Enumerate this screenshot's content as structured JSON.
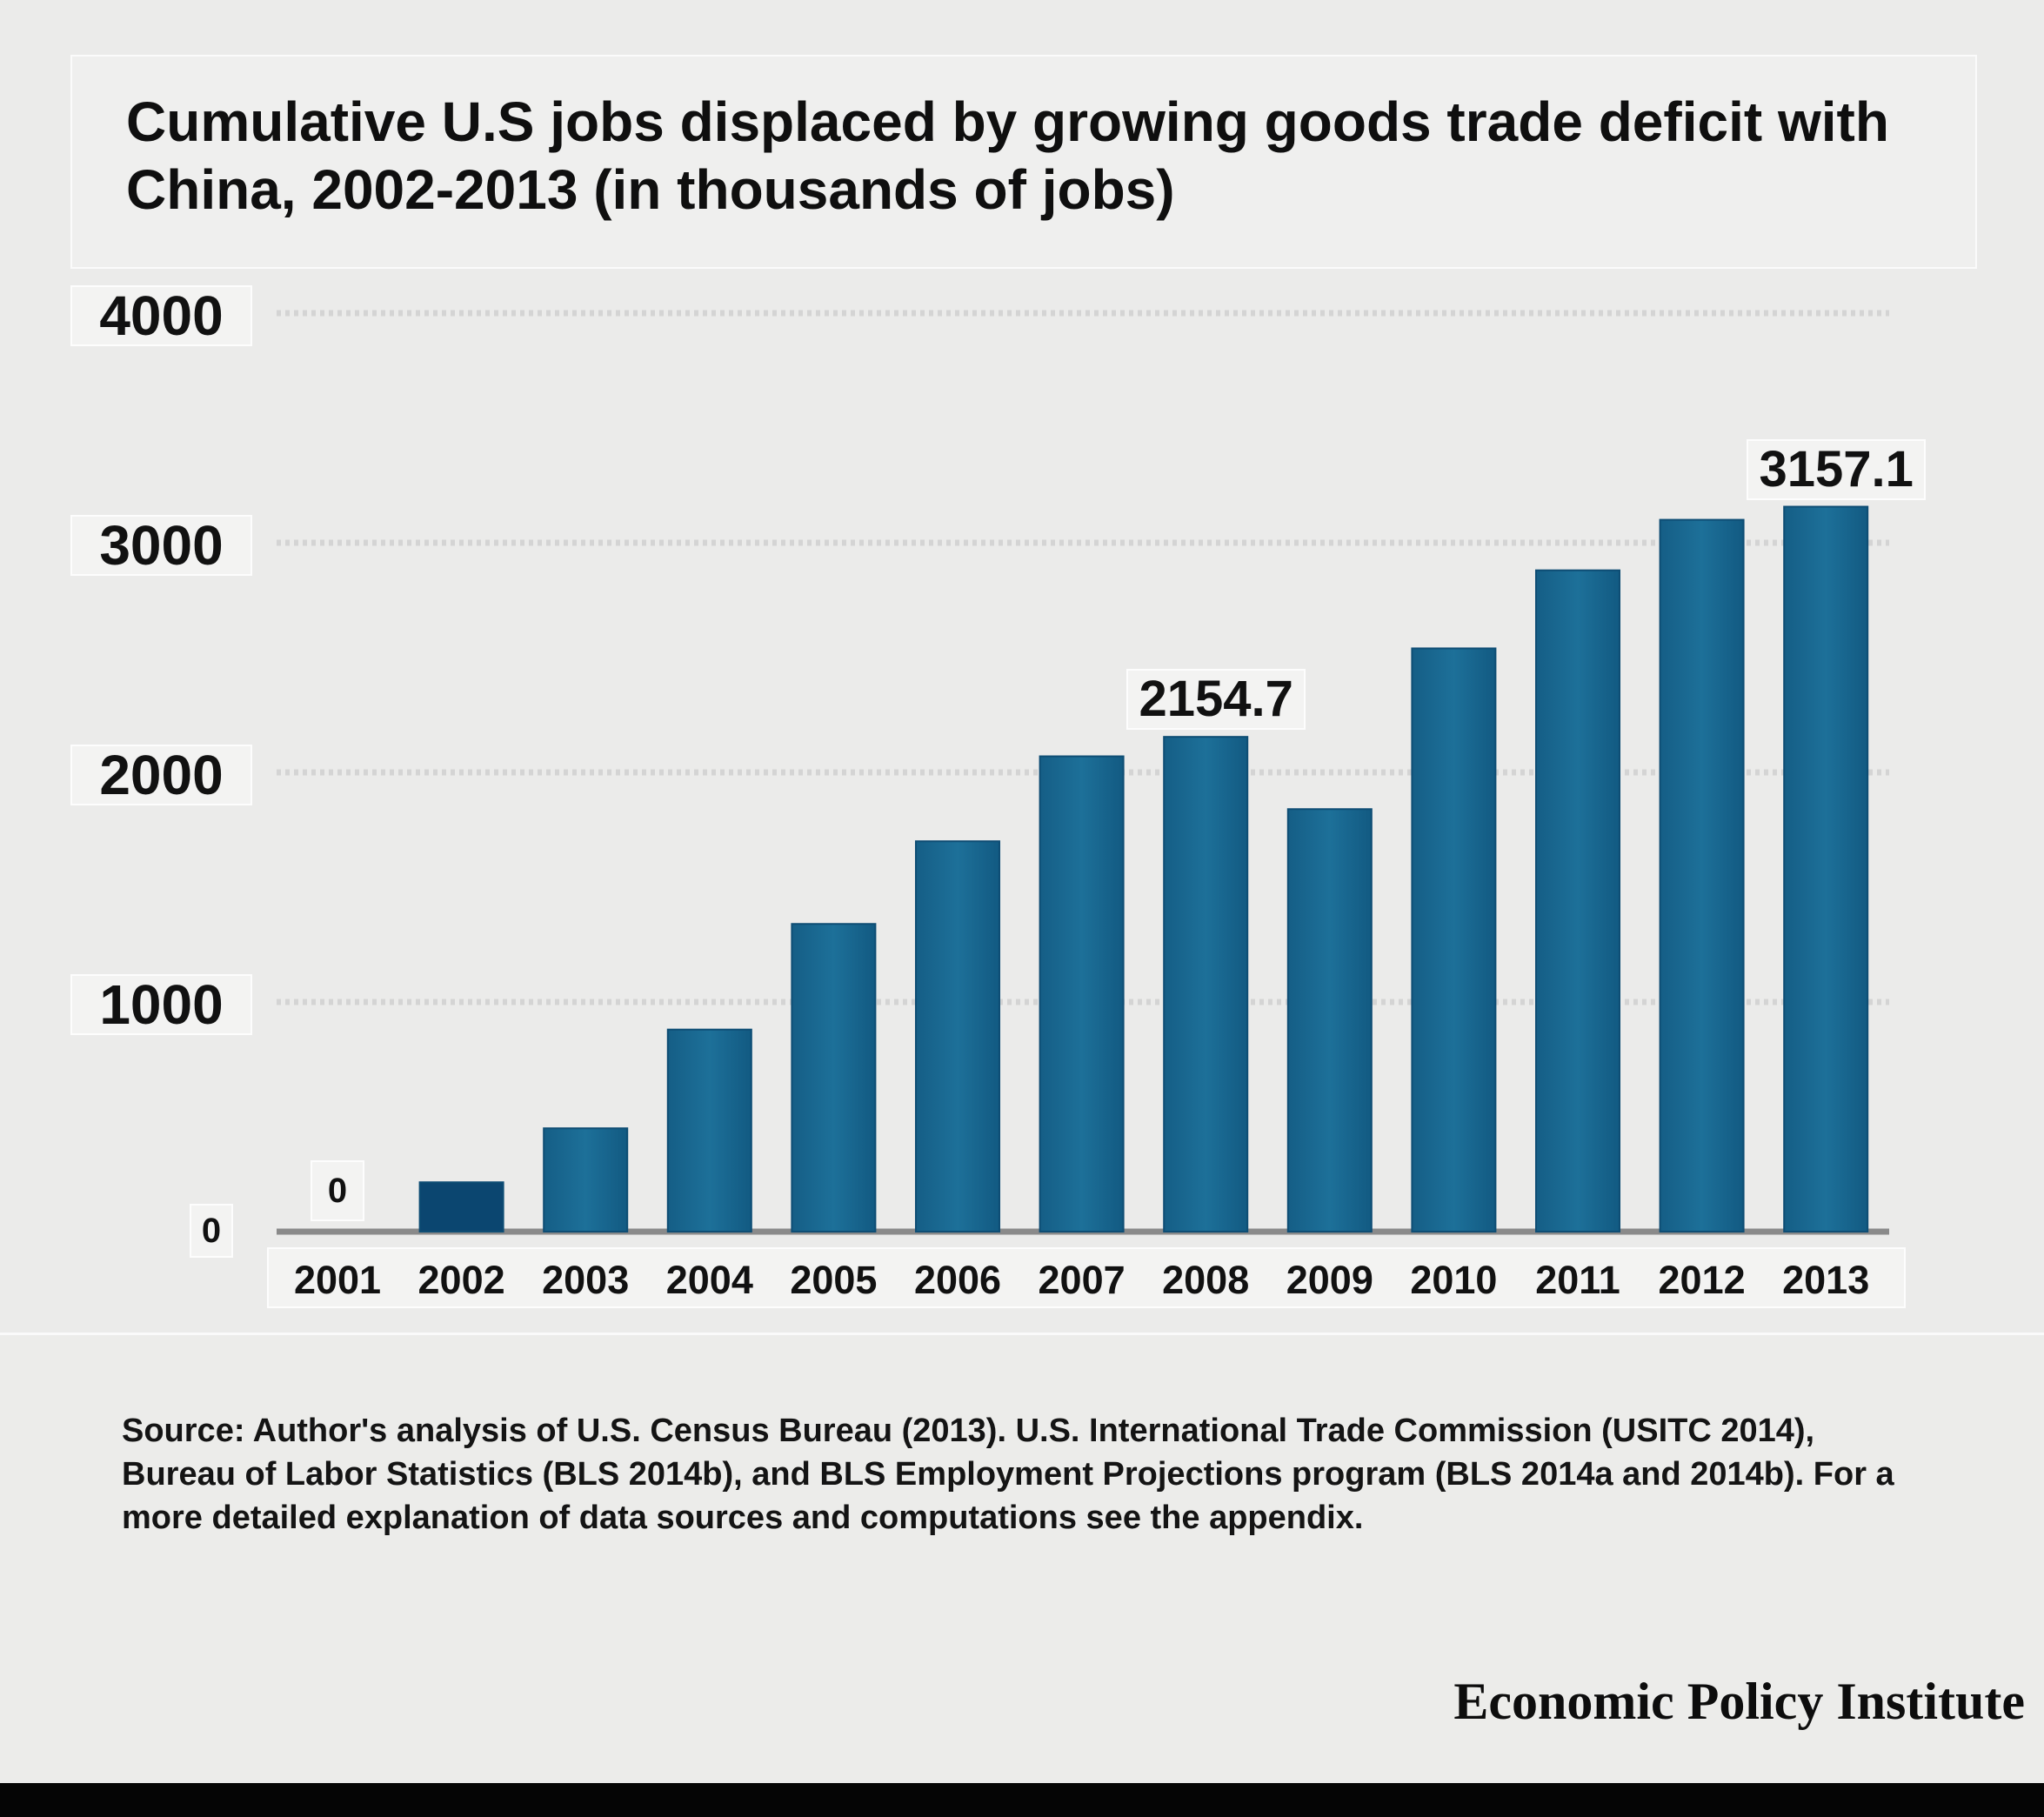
{
  "title": "Cumulative U.S jobs displaced by growing goods trade deficit with China, 2002-2013 (in thousands of jobs)",
  "source": "Source: Author's analysis of U.S. Census Bureau (2013). U.S. International Trade Commission (USITC 2014), Bureau of Labor Statistics (BLS 2014b), and BLS Employment Projections program (BLS 2014a and 2014b). For a more detailed explanation of data sources and computations see the appendix.",
  "credit": "Economic Policy Institute",
  "colors": {
    "bar": "#1a6a91",
    "bar_dark": "#0b4670",
    "grid": "#d4d4d4",
    "background": "#ebebea"
  },
  "chart_data": {
    "type": "bar",
    "categories": [
      "2001",
      "2002",
      "2003",
      "2004",
      "2005",
      "2006",
      "2007",
      "2008",
      "2009",
      "2010",
      "2011",
      "2012",
      "2013"
    ],
    "values": [
      0,
      215,
      450,
      880,
      1340,
      1700,
      2070,
      2154.7,
      1840,
      2540,
      2880,
      3100,
      3157.1
    ],
    "y_ticks": [
      "4000",
      "3000",
      "2000",
      "1000",
      "0"
    ],
    "ylim": [
      0,
      4000
    ],
    "data_labels": [
      {
        "category": "2001",
        "text": "0"
      },
      {
        "category": "2008",
        "text": "2154.7"
      },
      {
        "category": "2013",
        "text": "3157.1"
      }
    ],
    "title": "Cumulative U.S jobs displaced by growing goods trade deficit with China, 2002-2013 (in thousands of jobs)",
    "xlabel": "",
    "ylabel": "",
    "grid": true,
    "legend": "none"
  }
}
